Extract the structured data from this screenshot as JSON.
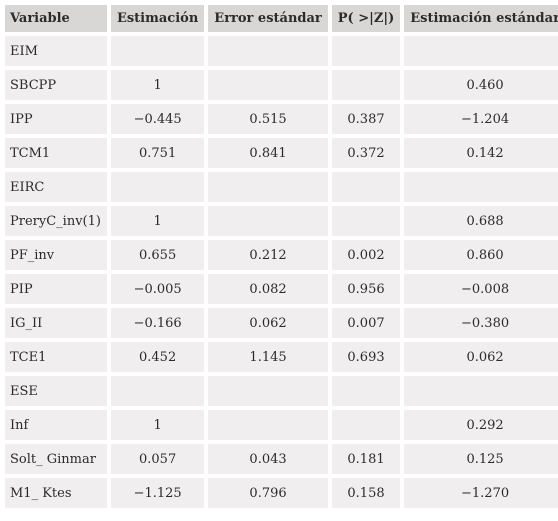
{
  "table": {
    "headers": [
      "Variable",
      "Estimación",
      "Error estándar",
      "P( >|Z|)",
      "Estimación estándar"
    ],
    "rows": [
      [
        "EIM",
        "",
        "",
        "",
        ""
      ],
      [
        "SBCPP",
        "1",
        "",
        "",
        "0.460"
      ],
      [
        "IPP",
        "−0.445",
        "0.515",
        "0.387",
        "−1.204"
      ],
      [
        "TCM1",
        "0.751",
        "0.841",
        "0.372",
        "0.142"
      ],
      [
        "EIRC",
        "",
        "",
        "",
        ""
      ],
      [
        "PreryC_inv(1)",
        "1",
        "",
        "",
        "0.688"
      ],
      [
        "PF_inv",
        "0.655",
        "0.212",
        "0.002",
        "0.860"
      ],
      [
        "PIP",
        "−0.005",
        "0.082",
        "0.956",
        "−0.008"
      ],
      [
        "IG_II",
        "−0.166",
        "0.062",
        "0.007",
        "−0.380"
      ],
      [
        "TCE1",
        "0.452",
        "1.145",
        "0.693",
        "0.062"
      ],
      [
        "ESE",
        "",
        "",
        "",
        ""
      ],
      [
        "Inf",
        "1",
        "",
        "",
        "0.292"
      ],
      [
        "Solt_ Ginmar",
        "0.057",
        "0.043",
        "0.181",
        "0.125"
      ],
      [
        "M1_ Ktes",
        "−1.125",
        "0.796",
        "0.158",
        "−1.270"
      ]
    ]
  }
}
